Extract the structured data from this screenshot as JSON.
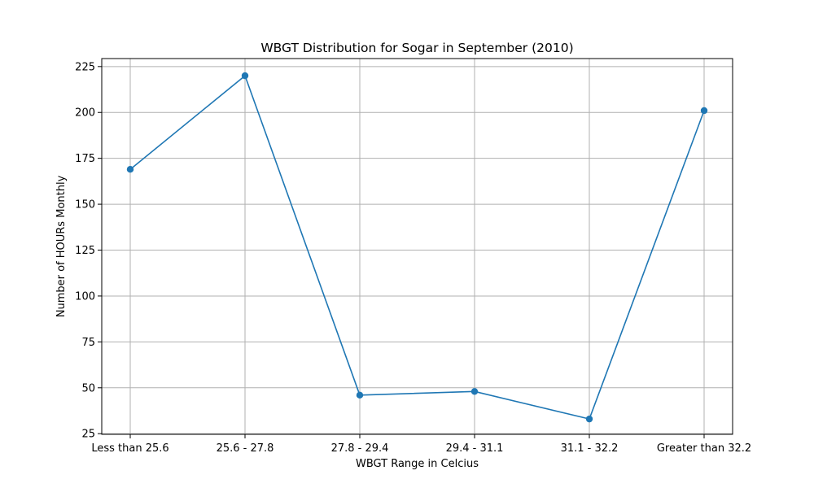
{
  "chart_data": {
    "type": "line",
    "title": "WBGT Distribution for Sogar in September (2010)",
    "xlabel": "WBGT Range in Celcius",
    "ylabel": "Number of HOURs Monthly",
    "categories": [
      "Less than 25.6",
      "25.6 - 27.8",
      "27.8 - 29.4",
      "29.4 - 31.1",
      "31.1 - 32.2",
      "Greater than 32.2"
    ],
    "series": [
      {
        "values": [
          169,
          220,
          46,
          48,
          33,
          201
        ]
      }
    ],
    "ylim": [
      24.65,
      229.35
    ],
    "yticks": [
      25,
      50,
      75,
      100,
      125,
      150,
      175,
      200,
      225
    ],
    "grid": true,
    "markers": true,
    "colors": {
      "line": "#1f77b4",
      "grid": "#b0b0b0",
      "axes": "#000000"
    }
  }
}
